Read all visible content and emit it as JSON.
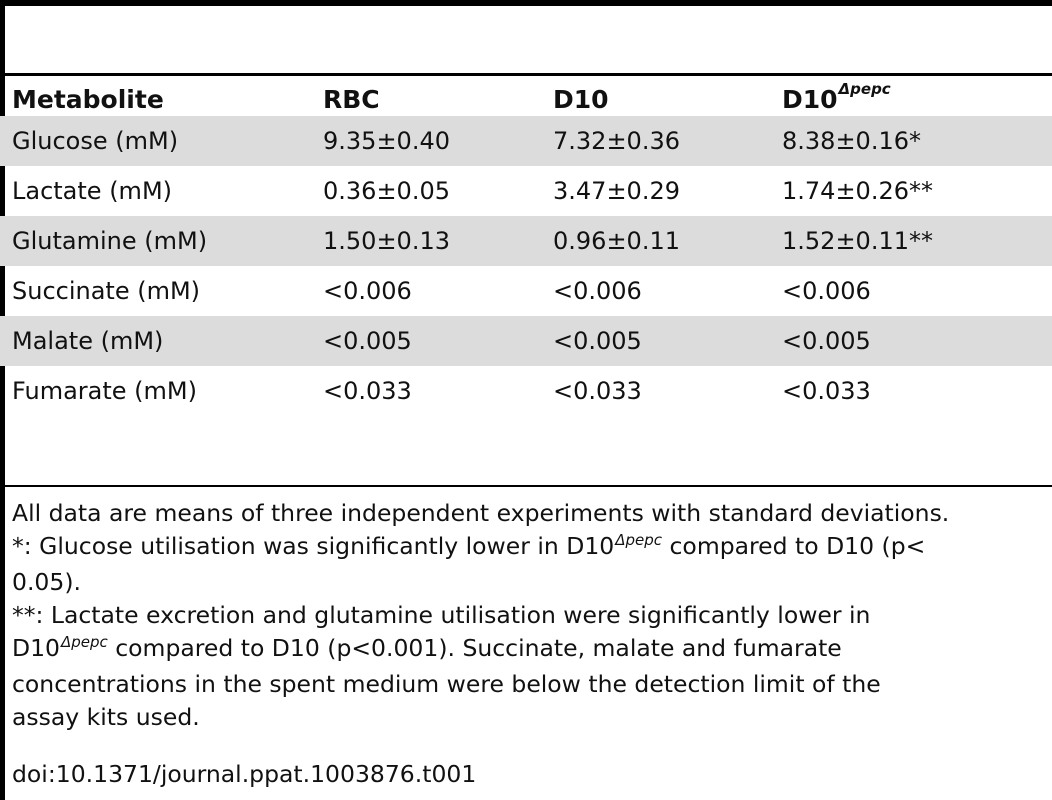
{
  "table": {
    "headers": {
      "metabolite": "Metabolite",
      "rbc": "RBC",
      "d10": "D10",
      "d10_mutant": "D10",
      "d10_mutant_sup": "Δpepc"
    },
    "rows": [
      {
        "metabolite": "Glucose (mM)",
        "rbc": "9.35±0.40",
        "d10": "7.32±0.36",
        "d10_mutant": "8.38±0.16*"
      },
      {
        "metabolite": "Lactate (mM)",
        "rbc": "0.36±0.05",
        "d10": "3.47±0.29",
        "d10_mutant": "1.74±0.26**"
      },
      {
        "metabolite": "Glutamine (mM)",
        "rbc": "1.50±0.13",
        "d10": "0.96±0.11",
        "d10_mutant": "1.52±0.11**"
      },
      {
        "metabolite": "Succinate (mM)",
        "rbc": "<0.006",
        "d10": "<0.006",
        "d10_mutant": "<0.006"
      },
      {
        "metabolite": "Malate (mM)",
        "rbc": "<0.005",
        "d10": "<0.005",
        "d10_mutant": "<0.005"
      },
      {
        "metabolite": "Fumarate (mM)",
        "rbc": "<0.033",
        "d10": "<0.033",
        "d10_mutant": "<0.033"
      }
    ]
  },
  "notes": {
    "line1": "All data are means of three independent experiments with standard deviations.",
    "line2_prefix": "*: Glucose utilisation was significantly lower in D10",
    "line2_sup": "Δpepc",
    "line2_suffix": " compared to D10 (p<",
    "line3": "0.05).",
    "line4": "**: Lactate excretion and glutamine utilisation were significantly lower in",
    "line5_prefix": "D10",
    "line5_sup": "Δpepc",
    "line5_suffix": " compared to D10 (p<0.001). Succinate, malate and fumarate",
    "line6": "concentrations in the spent medium were below the detection limit of the",
    "line7": "assay kits used.",
    "doi": "doi:10.1371/journal.ppat.1003876.t001"
  }
}
